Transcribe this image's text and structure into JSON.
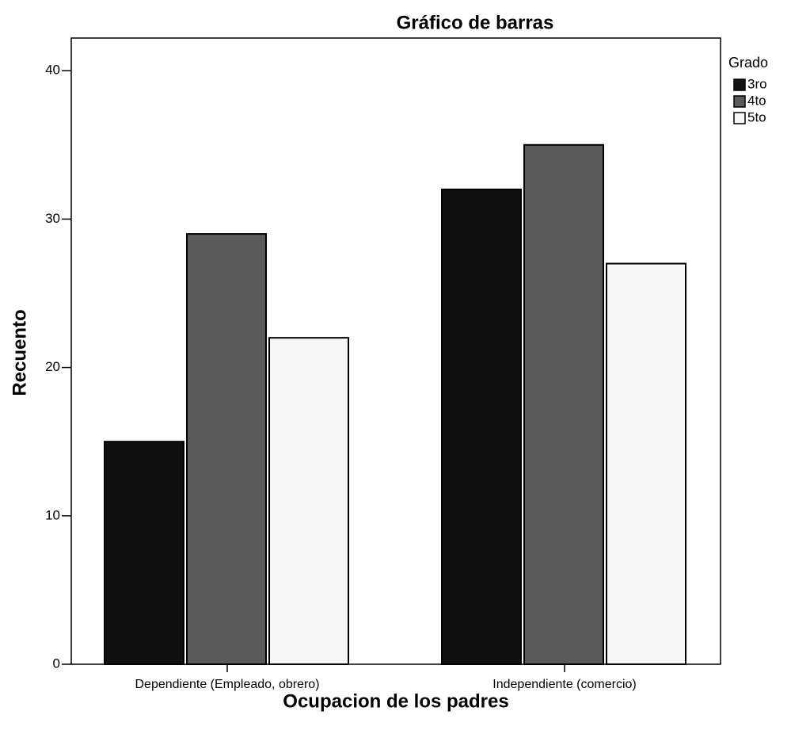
{
  "chart_data": {
    "type": "bar",
    "title": "Gráfico de barras",
    "x_label": "Ocupacion de los padres",
    "y_label": "Recuento",
    "categories": [
      "Dependiente (Empleado, obrero)",
      "Independiente (comercio)"
    ],
    "series": [
      {
        "name": "3ro",
        "color": "#111111",
        "values": [
          15,
          32
        ]
      },
      {
        "name": "4to",
        "color": "#5a5a5a",
        "values": [
          29,
          35
        ]
      },
      {
        "name": "5to",
        "color": "#f7f7f7",
        "values": [
          22,
          27
        ]
      }
    ],
    "legend_title": "Grado",
    "legend": "right",
    "ylim": [
      0,
      42.2
    ],
    "yticks": [
      0,
      10,
      20,
      30,
      40
    ],
    "grid": false
  }
}
